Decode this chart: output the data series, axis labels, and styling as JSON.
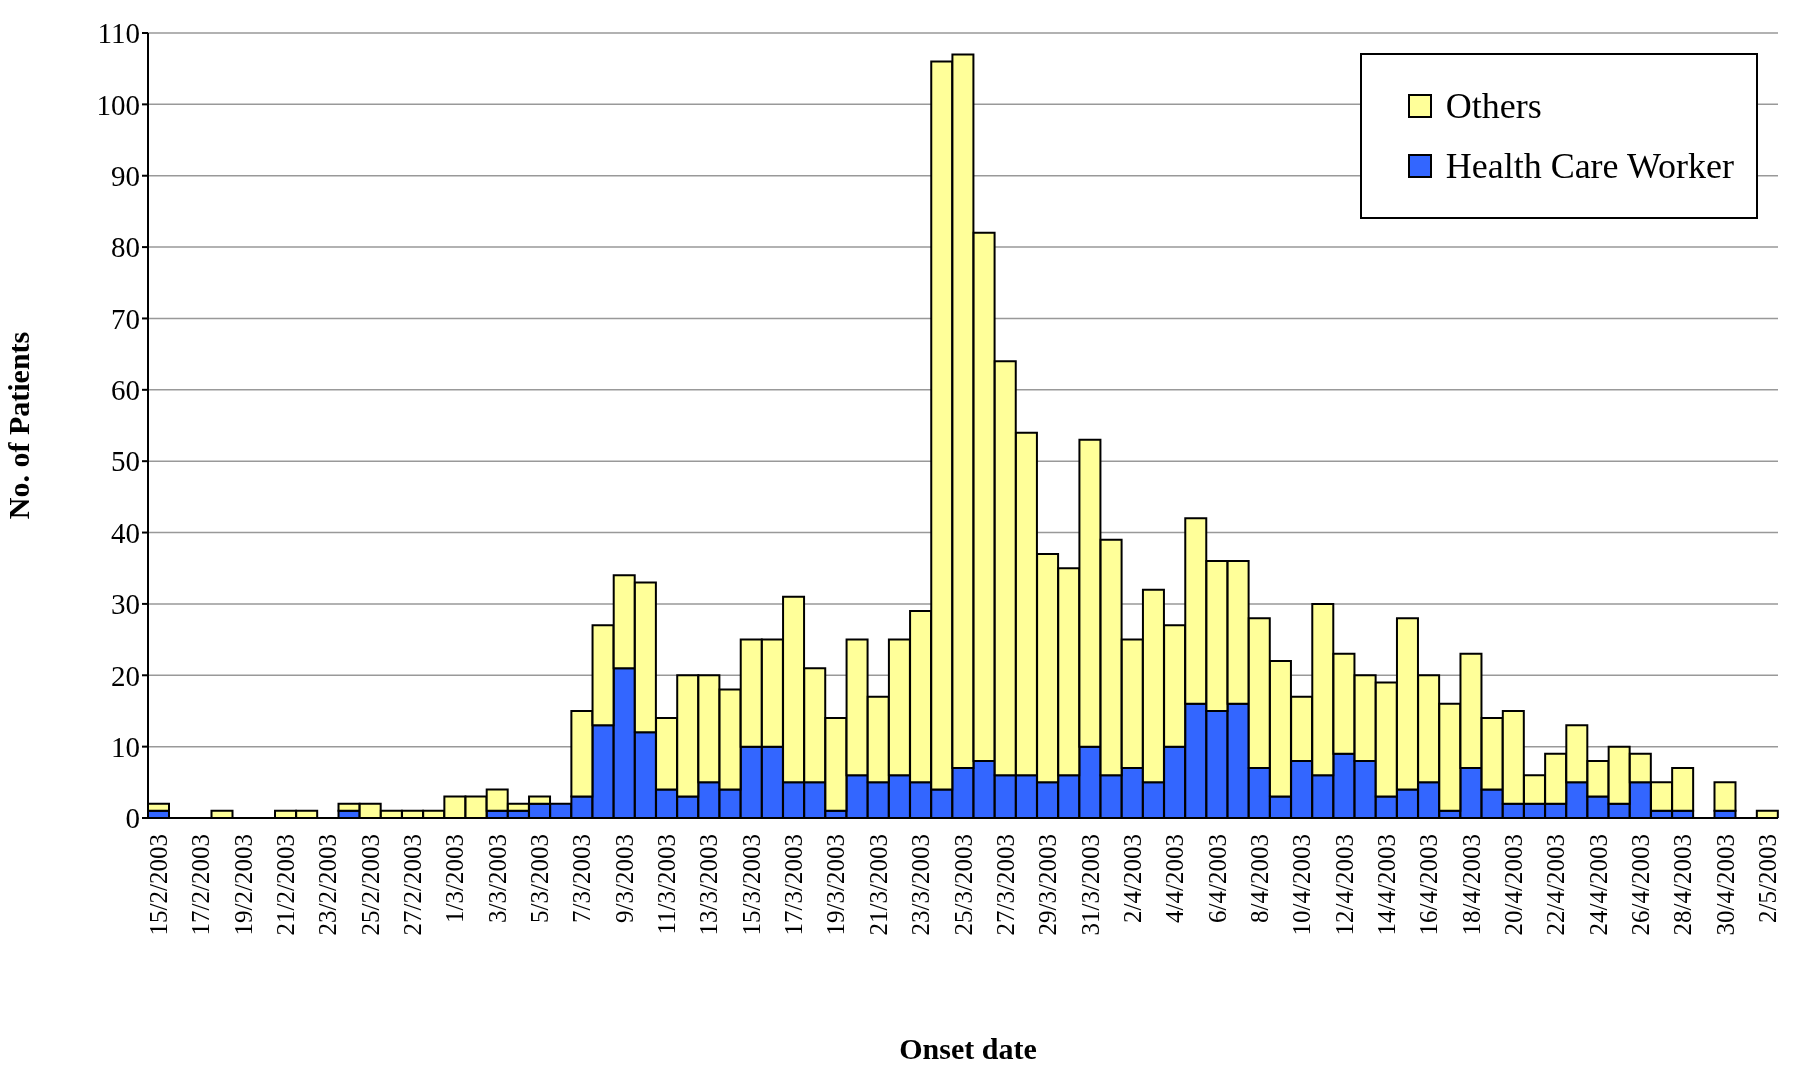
{
  "chart_data": {
    "type": "bar",
    "stacked": true,
    "xlabel": "Onset date",
    "ylabel": "No. of Patients",
    "categories": [
      "15/2/2003",
      null,
      "17/2/2003",
      null,
      "19/2/2003",
      null,
      "21/2/2003",
      null,
      "23/2/2003",
      null,
      "25/2/2003",
      null,
      "27/2/2003",
      null,
      "1/3/2003",
      null,
      "3/3/2003",
      null,
      "5/3/2003",
      null,
      "7/3/2003",
      null,
      "9/3/2003",
      null,
      "11/3/2003",
      null,
      "13/3/2003",
      null,
      "15/3/2003",
      null,
      "17/3/2003",
      null,
      "19/3/2003",
      null,
      "21/3/2003",
      null,
      "23/3/2003",
      null,
      "25/3/2003",
      null,
      "27/3/2003",
      null,
      "29/3/2003",
      null,
      "31/3/2003",
      null,
      "2/4/2003",
      null,
      "4/4/2003",
      null,
      "6/4/2003",
      null,
      "8/4/2003",
      null,
      "10/4/2003",
      null,
      "12/4/2003",
      null,
      "14/4/2003",
      null,
      "16/4/2003",
      null,
      "18/4/2003",
      null,
      "20/4/2003",
      null,
      "22/4/2003",
      null,
      "24/4/2003",
      null,
      "26/4/2003",
      null,
      "28/4/2003",
      null,
      "30/4/2003",
      null,
      "2/5/2003"
    ],
    "series": [
      {
        "name": "Health Care Worker",
        "color": "#3366ff",
        "values": [
          1,
          0,
          0,
          0,
          0,
          0,
          0,
          0,
          0,
          1,
          0,
          0,
          0,
          0,
          0,
          0,
          1,
          1,
          2,
          2,
          3,
          13,
          21,
          12,
          4,
          3,
          5,
          4,
          10,
          10,
          5,
          5,
          1,
          6,
          5,
          6,
          5,
          4,
          7,
          8,
          6,
          6,
          5,
          6,
          10,
          6,
          7,
          5,
          10,
          16,
          15,
          16,
          7,
          3,
          8,
          6,
          9,
          8,
          3,
          4,
          5,
          1,
          7,
          4,
          2,
          2,
          2,
          5,
          3,
          2,
          5,
          1,
          1,
          0,
          1,
          0,
          0
        ]
      },
      {
        "name": "Others",
        "color": "#ffff99",
        "values": [
          1,
          0,
          0,
          1,
          0,
          0,
          1,
          1,
          0,
          1,
          2,
          1,
          1,
          1,
          3,
          3,
          3,
          1,
          1,
          0,
          12,
          14,
          13,
          21,
          10,
          17,
          15,
          14,
          15,
          15,
          26,
          16,
          13,
          19,
          12,
          19,
          24,
          102,
          100,
          74,
          58,
          48,
          32,
          29,
          43,
          33,
          18,
          27,
          17,
          26,
          21,
          20,
          21,
          19,
          9,
          24,
          14,
          12,
          16,
          24,
          15,
          15,
          16,
          10,
          13,
          4,
          7,
          8,
          5,
          8,
          4,
          4,
          6,
          0,
          4,
          0,
          1
        ]
      }
    ],
    "ylim": [
      0,
      110
    ],
    "yticks": [
      0,
      10,
      20,
      30,
      40,
      50,
      60,
      70,
      80,
      90,
      100,
      110
    ],
    "grid": "y",
    "legend": "top right"
  }
}
